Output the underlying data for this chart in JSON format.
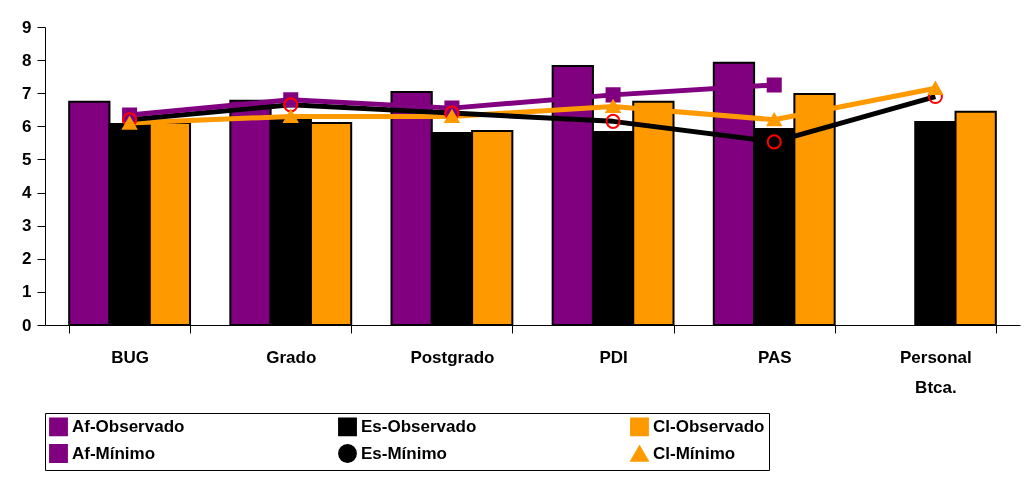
{
  "chart_data": {
    "type": "bar",
    "categories": [
      "BUG",
      "Grado",
      "Postgrado",
      "PDI",
      "PAS",
      "Personal Btca."
    ],
    "ylim": [
      0,
      9
    ],
    "yticks": [
      0,
      1,
      2,
      3,
      4,
      5,
      6,
      7,
      8,
      9
    ],
    "grid": false,
    "legend": "bottom",
    "series": [
      {
        "name": "Af-Observado",
        "color": "#800080",
        "values": [
          6.74,
          6.77,
          7.04,
          7.82,
          7.92,
          null
        ]
      },
      {
        "name": "Es-Observado",
        "color": "#000000",
        "values": [
          6.07,
          6.2,
          5.8,
          5.83,
          5.92,
          6.13
        ]
      },
      {
        "name": "Cl-Observado",
        "color": "#ff9900",
        "values": [
          6.1,
          6.1,
          5.86,
          6.74,
          6.98,
          6.44
        ]
      },
      {
        "name": "Af-Mínimo",
        "type": "line",
        "marker": "square",
        "color": "#800080",
        "values": [
          6.34,
          6.8,
          6.55,
          6.95,
          7.25,
          null
        ]
      },
      {
        "name": "Es-Mínimo",
        "type": "line",
        "marker": "circle",
        "color": "#000000",
        "values": [
          6.2,
          6.65,
          6.4,
          6.15,
          5.53,
          6.9
        ]
      },
      {
        "name": "Cl-Mínimo",
        "type": "line",
        "marker": "triangle",
        "color": "#ff9900",
        "values": [
          6.1,
          6.3,
          6.3,
          6.6,
          6.2,
          7.15
        ]
      }
    ]
  }
}
